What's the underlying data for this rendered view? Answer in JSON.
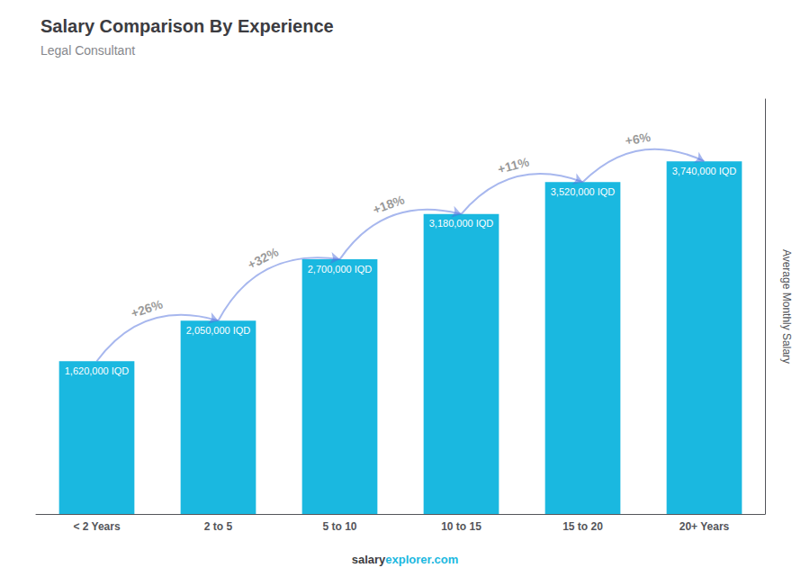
{
  "chart_data": {
    "type": "bar",
    "title": "Salary Comparison By Experience",
    "subtitle": "Legal Consultant",
    "ylabel": "Average Monthly Salary",
    "categories": [
      "< 2 Years",
      "2 to 5",
      "5 to 10",
      "10 to 15",
      "15 to 20",
      "20+ Years"
    ],
    "values": [
      1620000,
      2050000,
      2700000,
      3180000,
      3520000,
      3740000
    ],
    "value_labels": [
      "1,620,000 IQD",
      "2,050,000 IQD",
      "2,700,000 IQD",
      "3,180,000 IQD",
      "3,520,000 IQD",
      "3,740,000 IQD"
    ],
    "data_labels": true,
    "annotations": [
      "+26%",
      "+32%",
      "+18%",
      "+11%",
      "+6%"
    ],
    "footer": [
      "salary",
      "explorer.com"
    ],
    "color": "#1ab8e0",
    "ylim": [
      0,
      4400000
    ],
    "yticks": [],
    "tick_labels": "x",
    "grid": false
  }
}
